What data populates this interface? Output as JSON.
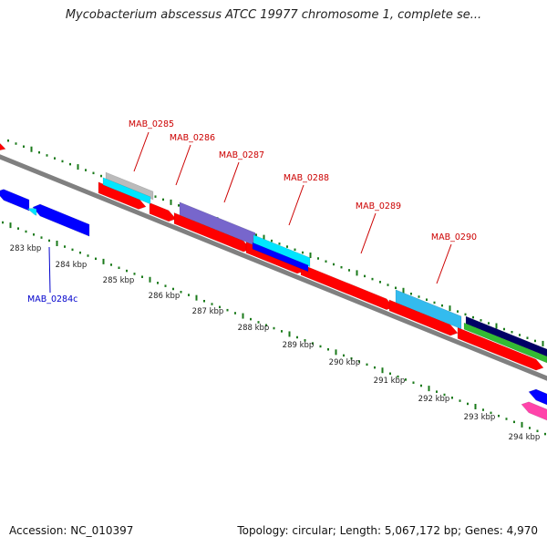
{
  "title": "Mycobacterium abscessus ATCC 19977 chromosome 1, complete se...",
  "footer": {
    "accession": "Accession: NC_010397",
    "topology": "Topology: circular; Length: 5,067,172 bp; Genes: 4,970"
  },
  "colors": {
    "forward_label": "#cc0000",
    "reverse_label": "#0000cc",
    "backbone": "#808080",
    "tick_green": "#1a7a1a",
    "cds_red": "#ff0000",
    "cds_blue": "#0000ff",
    "cds_cyan": "#00e5ff",
    "cds_lightblue": "#33bbee",
    "cds_purple": "#7766cc",
    "cds_gray": "#bbbbbb",
    "cds_navy": "#000066",
    "cds_green": "#33bb33",
    "cds_pink": "#ff44aa"
  },
  "scale": {
    "unit": "kbp",
    "ticks": [
      "283 kbp",
      "284 kbp",
      "285 kbp",
      "286 kbp",
      "287 kbp",
      "288 kbp",
      "289 kbp",
      "290 kbp",
      "291 kbp",
      "292 kbp",
      "293 kbp",
      "294 kbp"
    ]
  },
  "gene_labels": [
    {
      "name": "MAB_0284c",
      "strand": "reverse"
    },
    {
      "name": "MAB_0285",
      "strand": "forward"
    },
    {
      "name": "MAB_0286",
      "strand": "forward"
    },
    {
      "name": "MAB_0287",
      "strand": "forward"
    },
    {
      "name": "MAB_0288",
      "strand": "forward"
    },
    {
      "name": "MAB_0289",
      "strand": "forward"
    },
    {
      "name": "MAB_0290",
      "strand": "forward"
    }
  ]
}
